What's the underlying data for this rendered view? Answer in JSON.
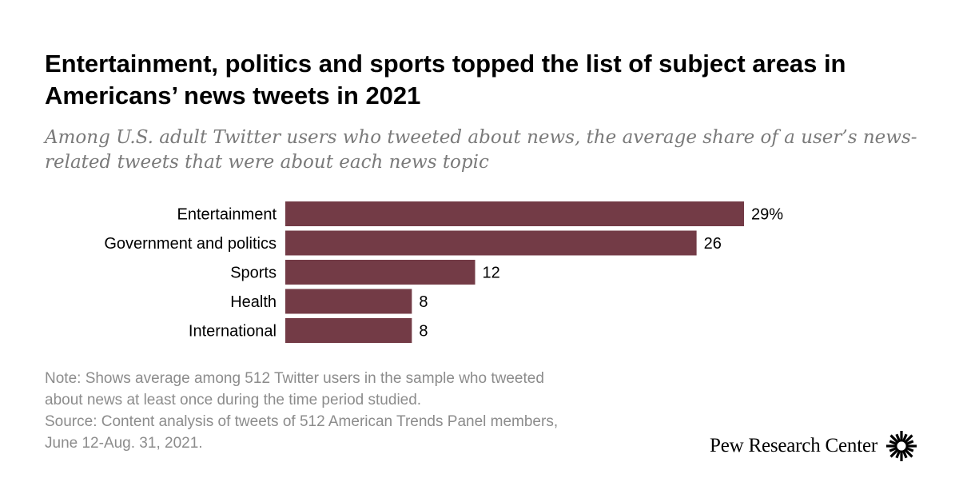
{
  "title": "Entertainment, politics and sports topped the list of subject areas in Americans’ news tweets in 2021",
  "subtitle": "Among U.S. adult Twitter users who tweeted about news, the average share of a user’s news-related tweets that were about each news topic",
  "chart_data": {
    "type": "bar",
    "orientation": "horizontal",
    "categories": [
      "Entertainment",
      "Government and politics",
      "Sports",
      "Health",
      "International"
    ],
    "values": [
      29,
      26,
      12,
      8,
      8
    ],
    "value_labels": [
      "29%",
      "26",
      "12",
      "8",
      "8"
    ],
    "xlabel": "",
    "ylabel": "",
    "xlim": [
      0,
      29
    ],
    "grid": false,
    "bar_color": "#733b46"
  },
  "notes": {
    "note_line_1": "Note: Shows average among 512 Twitter users in the sample who tweeted",
    "note_line_2": "about news at least once during the time period studied.",
    "source_line_1": "Source: Content analysis of tweets of 512 American Trends Panel members,",
    "source_line_2": "June 12-Aug. 31, 2021."
  },
  "logo": {
    "text": "Pew Research Center",
    "icon": "pew-sunburst-icon"
  }
}
